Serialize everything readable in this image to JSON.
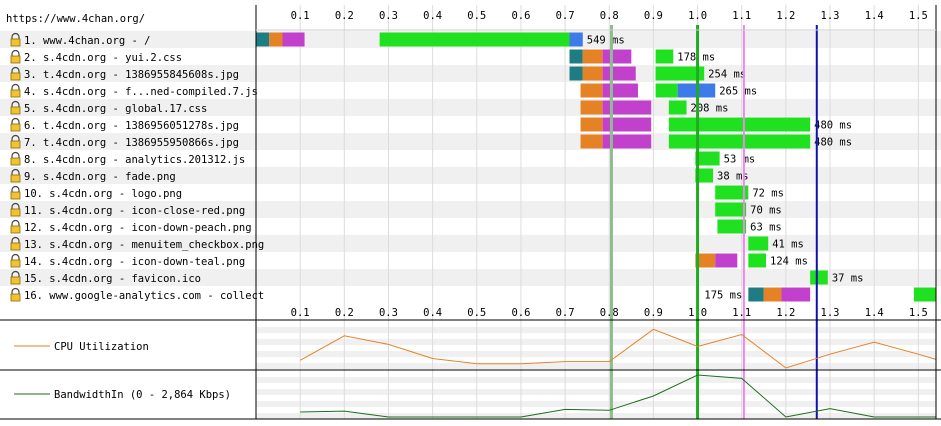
{
  "page_url": "https://www.4chan.org/",
  "cpu_label": "CPU Utilization",
  "bandwidth_label": "BandwidthIn (0 - 2,864 Kbps)",
  "colors": {
    "dns": "#1f7c83",
    "connect": "#e58226",
    "ssl": "#c141cd",
    "ttfb": "#1fe11f",
    "download_js": "#3c7be8",
    "start_render": "#8fbc8f",
    "dom_content_loaded": "#22aa22",
    "dom_interactive": "#ee88ee",
    "load_event": "#1010aa",
    "cpu_line": "#e58226",
    "bandwidth_line": "#1b6e1b",
    "row_stripe": "#f0f0f0"
  },
  "chart_data": {
    "type": "waterfall",
    "x_unit": "s",
    "xlim": [
      0,
      1.54
    ],
    "x_ticks": [
      0.1,
      0.2,
      0.3,
      0.4,
      0.5,
      0.6,
      0.7,
      0.8,
      0.9,
      1.0,
      1.1,
      1.2,
      1.3,
      1.4,
      1.5
    ],
    "x_tick_labels": [
      "0.1",
      "0.2",
      "0.3",
      "0.4",
      "0.5",
      "0.6",
      "0.7",
      "0.8",
      "0.9",
      "1.0",
      "1.1",
      "1.2",
      "1.3",
      "1.4",
      "1.5"
    ],
    "markers": {
      "start_render": 0.805,
      "dom_content_loaded": 1.0,
      "dom_interactive": 1.105,
      "load_event": 1.27
    },
    "requests": [
      {
        "label": " 1. www.4chan.org - /",
        "duration": "549 ms",
        "segments": [
          {
            "phase": "dns",
            "start": 0.0,
            "end": 0.03
          },
          {
            "phase": "connect",
            "start": 0.03,
            "end": 0.06
          },
          {
            "phase": "ssl",
            "start": 0.06,
            "end": 0.11
          },
          {
            "phase": "ttfb",
            "start": 0.28,
            "end": 0.71
          },
          {
            "phase": "download_js",
            "start": 0.71,
            "end": 0.74
          }
        ]
      },
      {
        "label": " 2. s.4cdn.org - yui.2.css",
        "duration": "178 ms",
        "segments": [
          {
            "phase": "dns",
            "start": 0.71,
            "end": 0.74
          },
          {
            "phase": "connect",
            "start": 0.74,
            "end": 0.785
          },
          {
            "phase": "ssl",
            "start": 0.785,
            "end": 0.85
          },
          {
            "phase": "ttfb",
            "start": 0.905,
            "end": 0.945
          }
        ]
      },
      {
        "label": " 3. t.4cdn.org - 1386955845608s.jpg",
        "duration": "254 ms",
        "segments": [
          {
            "phase": "dns",
            "start": 0.71,
            "end": 0.74
          },
          {
            "phase": "connect",
            "start": 0.74,
            "end": 0.785
          },
          {
            "phase": "ssl",
            "start": 0.785,
            "end": 0.86
          },
          {
            "phase": "ttfb",
            "start": 0.905,
            "end": 1.015
          }
        ]
      },
      {
        "label": " 4. s.4cdn.org - f...ned-compiled.7.js",
        "duration": "265 ms",
        "segments": [
          {
            "phase": "connect",
            "start": 0.735,
            "end": 0.785
          },
          {
            "phase": "ssl",
            "start": 0.785,
            "end": 0.865
          },
          {
            "phase": "ttfb",
            "start": 0.905,
            "end": 0.955
          },
          {
            "phase": "download_js",
            "start": 0.955,
            "end": 1.04
          }
        ]
      },
      {
        "label": " 5. s.4cdn.org - global.17.css",
        "duration": "208 ms",
        "segments": [
          {
            "phase": "connect",
            "start": 0.735,
            "end": 0.785
          },
          {
            "phase": "ssl",
            "start": 0.785,
            "end": 0.895
          },
          {
            "phase": "ttfb",
            "start": 0.935,
            "end": 0.975
          }
        ]
      },
      {
        "label": " 6. t.4cdn.org - 1386956051278s.jpg",
        "duration": "480 ms",
        "segments": [
          {
            "phase": "connect",
            "start": 0.735,
            "end": 0.785
          },
          {
            "phase": "ssl",
            "start": 0.785,
            "end": 0.895
          },
          {
            "phase": "ttfb",
            "start": 0.935,
            "end": 1.255
          }
        ]
      },
      {
        "label": " 7. t.4cdn.org - 1386955950866s.jpg",
        "duration": "480 ms",
        "segments": [
          {
            "phase": "connect",
            "start": 0.735,
            "end": 0.785
          },
          {
            "phase": "ssl",
            "start": 0.785,
            "end": 0.895
          },
          {
            "phase": "ttfb",
            "start": 0.935,
            "end": 1.255
          }
        ]
      },
      {
        "label": " 8. s.4cdn.org - analytics.201312.js",
        "duration": "53 ms",
        "segments": [
          {
            "phase": "ttfb",
            "start": 0.995,
            "end": 1.05
          }
        ]
      },
      {
        "label": " 9. s.4cdn.org - fade.png",
        "duration": "38 ms",
        "segments": [
          {
            "phase": "ttfb",
            "start": 0.995,
            "end": 1.035
          }
        ]
      },
      {
        "label": "10. s.4cdn.org - logo.png",
        "duration": "72 ms",
        "segments": [
          {
            "phase": "ttfb",
            "start": 1.04,
            "end": 1.115
          }
        ]
      },
      {
        "label": "11. s.4cdn.org - icon-close-red.png",
        "duration": "70 ms",
        "segments": [
          {
            "phase": "ttfb",
            "start": 1.04,
            "end": 1.11
          }
        ]
      },
      {
        "label": "12. s.4cdn.org - icon-down-peach.png",
        "duration": "63 ms",
        "segments": [
          {
            "phase": "ttfb",
            "start": 1.045,
            "end": 1.11
          }
        ]
      },
      {
        "label": "13. s.4cdn.org - menuitem_checkbox.png",
        "duration": "41 ms",
        "segments": [
          {
            "phase": "ttfb",
            "start": 1.115,
            "end": 1.16
          }
        ]
      },
      {
        "label": "14. s.4cdn.org - icon-down-teal.png",
        "duration": "124 ms",
        "segments": [
          {
            "phase": "connect",
            "start": 0.995,
            "end": 1.04
          },
          {
            "phase": "ssl",
            "start": 1.04,
            "end": 1.09
          },
          {
            "phase": "ttfb",
            "start": 1.115,
            "end": 1.155
          }
        ]
      },
      {
        "label": "15. s.4cdn.org - favicon.ico",
        "duration": "37 ms",
        "segments": [
          {
            "phase": "ttfb",
            "start": 1.255,
            "end": 1.295
          }
        ]
      },
      {
        "label": "16. www.google-analytics.com - collect",
        "duration": "175 ms",
        "segments": [
          {
            "phase": "dns",
            "start": 1.115,
            "end": 1.15
          },
          {
            "phase": "connect",
            "start": 1.15,
            "end": 1.19
          },
          {
            "phase": "ssl",
            "start": 1.19,
            "end": 1.255
          },
          {
            "phase": "ttfb",
            "start": 1.49,
            "end": 1.54
          }
        ]
      }
    ],
    "cpu_utilization_pct": {
      "x": [
        0.1,
        0.2,
        0.3,
        0.4,
        0.5,
        0.6,
        0.7,
        0.8,
        0.9,
        1.0,
        1.1,
        1.2,
        1.3,
        1.4,
        1.5,
        1.54
      ],
      "values": [
        18,
        75,
        55,
        22,
        10,
        10,
        15,
        15,
        90,
        50,
        78,
        0,
        32,
        60,
        32,
        20
      ]
    },
    "bandwidth_in_pct": {
      "x": [
        0.1,
        0.2,
        0.3,
        0.4,
        0.5,
        0.6,
        0.7,
        0.8,
        0.9,
        1.0,
        1.1,
        1.2,
        1.3,
        1.4,
        1.5,
        1.54
      ],
      "values": [
        12,
        14,
        0,
        0,
        0,
        0,
        18,
        16,
        50,
        100,
        92,
        0,
        20,
        0,
        0,
        0
      ]
    }
  }
}
